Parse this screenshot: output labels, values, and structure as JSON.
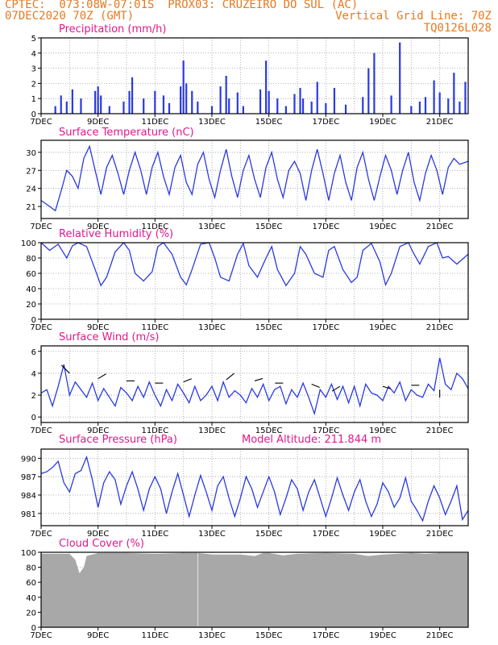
{
  "header": {
    "line1_left": "CPTEC:  073:08W-07:01S  PROX03: CRUZEIRO DO SUL (AC)",
    "line2_left": "07DEC2020 70Z (GMT)",
    "line2_right": "Vertical Grid Line: 70Z",
    "line3_right": "TQ0126L028"
  },
  "colors": {
    "header": "#e8781e",
    "title": "#e0188c",
    "series": "#2a3ae0",
    "cloud": "#a8a8a8"
  },
  "x_labels": [
    "7DEC",
    "9DEC",
    "11DEC",
    "13DEC",
    "15DEC",
    "17DEC",
    "19DEC",
    "21DEC"
  ],
  "chart_data": [
    {
      "id": "precip",
      "type": "bar",
      "title": "Precipitation (mm/h)",
      "ylim": [
        0,
        5
      ],
      "yticks": [
        0,
        1,
        2,
        3,
        4,
        5
      ],
      "x_days": [
        0,
        15
      ],
      "bars": [
        [
          0.5,
          0.5
        ],
        [
          0.7,
          1.2
        ],
        [
          0.9,
          0.8
        ],
        [
          1.1,
          1.6
        ],
        [
          1.4,
          1.0
        ],
        [
          1.9,
          1.5
        ],
        [
          2.0,
          1.8
        ],
        [
          2.1,
          1.2
        ],
        [
          2.4,
          0.5
        ],
        [
          2.9,
          0.8
        ],
        [
          3.1,
          1.5
        ],
        [
          3.2,
          2.4
        ],
        [
          3.6,
          1.0
        ],
        [
          4.0,
          1.5
        ],
        [
          4.3,
          1.2
        ],
        [
          4.5,
          0.7
        ],
        [
          4.9,
          1.8
        ],
        [
          5.0,
          3.5
        ],
        [
          5.1,
          2.0
        ],
        [
          5.3,
          1.5
        ],
        [
          5.5,
          0.8
        ],
        [
          6.0,
          0.5
        ],
        [
          6.3,
          1.8
        ],
        [
          6.5,
          2.5
        ],
        [
          6.6,
          1.0
        ],
        [
          6.9,
          1.4
        ],
        [
          7.1,
          0.5
        ],
        [
          7.7,
          1.6
        ],
        [
          7.9,
          3.5
        ],
        [
          8.0,
          1.5
        ],
        [
          8.3,
          1.0
        ],
        [
          8.6,
          0.5
        ],
        [
          8.9,
          1.3
        ],
        [
          9.1,
          1.7
        ],
        [
          9.2,
          1.0
        ],
        [
          9.5,
          0.8
        ],
        [
          9.7,
          2.1
        ],
        [
          10.0,
          0.7
        ],
        [
          10.3,
          1.7
        ],
        [
          10.7,
          0.6
        ],
        [
          11.3,
          1.1
        ],
        [
          11.5,
          3.0
        ],
        [
          11.7,
          4.0
        ],
        [
          12.3,
          1.2
        ],
        [
          12.6,
          4.7
        ],
        [
          13.0,
          0.5
        ],
        [
          13.3,
          0.8
        ],
        [
          13.5,
          1.1
        ],
        [
          13.8,
          2.2
        ],
        [
          14.0,
          1.4
        ],
        [
          14.3,
          1.0
        ],
        [
          14.5,
          2.7
        ],
        [
          14.7,
          0.8
        ],
        [
          14.9,
          2.1
        ]
      ]
    },
    {
      "id": "temp",
      "type": "line",
      "title": "Surface Temperature (nC)",
      "ylim": [
        19,
        32
      ],
      "yticks": [
        21,
        24,
        27,
        30
      ],
      "x_days": [
        0,
        15
      ],
      "x": [
        0,
        0.3,
        0.5,
        0.7,
        0.9,
        1.1,
        1.3,
        1.5,
        1.7,
        1.9,
        2.1,
        2.3,
        2.5,
        2.7,
        2.9,
        3.1,
        3.3,
        3.5,
        3.7,
        3.9,
        4.1,
        4.3,
        4.5,
        4.7,
        4.9,
        5.1,
        5.3,
        5.5,
        5.7,
        5.9,
        6.1,
        6.3,
        6.5,
        6.7,
        6.9,
        7.1,
        7.3,
        7.5,
        7.7,
        7.9,
        8.1,
        8.3,
        8.5,
        8.7,
        8.9,
        9.1,
        9.3,
        9.5,
        9.7,
        9.9,
        10.1,
        10.3,
        10.5,
        10.7,
        10.9,
        11.1,
        11.3,
        11.5,
        11.7,
        11.9,
        12.1,
        12.3,
        12.5,
        12.7,
        12.9,
        13.1,
        13.3,
        13.5,
        13.7,
        13.9,
        14.1,
        14.3,
        14.5,
        14.7,
        15.0
      ],
      "y": [
        22.0,
        21.0,
        20.3,
        23.5,
        27.0,
        26.0,
        24.0,
        29.0,
        31.0,
        27.0,
        23.0,
        27.5,
        29.5,
        26.5,
        23.0,
        27.0,
        30.0,
        27.0,
        23.0,
        27.5,
        30.0,
        26.0,
        23.0,
        27.5,
        29.5,
        25.0,
        23.0,
        28.0,
        30.0,
        25.5,
        22.5,
        27.0,
        30.5,
        26.0,
        22.5,
        27.0,
        29.5,
        25.5,
        22.5,
        27.5,
        30.0,
        25.5,
        22.5,
        27.0,
        28.5,
        26.5,
        22.0,
        27.0,
        30.5,
        26.5,
        22.0,
        26.5,
        29.5,
        25.0,
        22.0,
        27.5,
        30.0,
        25.5,
        22.0,
        26.0,
        29.5,
        27.0,
        23.0,
        27.0,
        30.0,
        25.0,
        22.0,
        26.5,
        29.5,
        27.0,
        23.0,
        27.5,
        29.0,
        28.0,
        28.5
      ]
    },
    {
      "id": "rh",
      "type": "line",
      "title": "Relative Humidity (%)",
      "ylim": [
        0,
        100
      ],
      "yticks": [
        0,
        20,
        40,
        60,
        80,
        100
      ],
      "x_days": [
        0,
        15
      ],
      "x": [
        0,
        0.3,
        0.6,
        0.9,
        1.1,
        1.3,
        1.6,
        1.9,
        2.1,
        2.3,
        2.6,
        2.9,
        3.1,
        3.3,
        3.6,
        3.9,
        4.1,
        4.3,
        4.6,
        4.9,
        5.1,
        5.3,
        5.6,
        5.9,
        6.1,
        6.3,
        6.6,
        6.9,
        7.1,
        7.3,
        7.6,
        7.9,
        8.1,
        8.3,
        8.6,
        8.9,
        9.1,
        9.3,
        9.6,
        9.9,
        10.1,
        10.3,
        10.6,
        10.9,
        11.1,
        11.3,
        11.6,
        11.9,
        12.1,
        12.3,
        12.6,
        12.9,
        13.1,
        13.3,
        13.6,
        13.9,
        14.1,
        14.3,
        14.6,
        15.0
      ],
      "y": [
        100,
        90,
        98,
        80,
        96,
        100,
        95,
        65,
        44,
        55,
        88,
        100,
        90,
        60,
        50,
        62,
        95,
        100,
        85,
        55,
        45,
        65,
        98,
        100,
        80,
        55,
        50,
        85,
        99,
        70,
        55,
        80,
        95,
        65,
        44,
        60,
        95,
        85,
        60,
        55,
        90,
        95,
        65,
        48,
        55,
        90,
        99,
        75,
        45,
        60,
        95,
        100,
        85,
        72,
        95,
        100,
        80,
        82,
        72,
        85
      ]
    },
    {
      "id": "wind",
      "type": "line",
      "title": "Surface Wind (m/s)",
      "ylim": [
        -0.5,
        6.5
      ],
      "yticks": [
        0,
        2,
        4,
        6
      ],
      "x_days": [
        0,
        15
      ],
      "x": [
        0,
        0.2,
        0.4,
        0.6,
        0.8,
        1.0,
        1.2,
        1.4,
        1.6,
        1.8,
        2.0,
        2.2,
        2.4,
        2.6,
        2.8,
        3.0,
        3.2,
        3.4,
        3.6,
        3.8,
        4.0,
        4.2,
        4.4,
        4.6,
        4.8,
        5.0,
        5.2,
        5.4,
        5.6,
        5.8,
        6.0,
        6.2,
        6.4,
        6.6,
        6.8,
        7.0,
        7.2,
        7.4,
        7.6,
        7.8,
        8.0,
        8.2,
        8.4,
        8.6,
        8.8,
        9.0,
        9.2,
        9.4,
        9.6,
        9.8,
        10.0,
        10.2,
        10.4,
        10.6,
        10.8,
        11.0,
        11.2,
        11.4,
        11.6,
        11.8,
        12.0,
        12.2,
        12.4,
        12.6,
        12.8,
        13.0,
        13.2,
        13.4,
        13.6,
        13.8,
        14.0,
        14.2,
        14.4,
        14.6,
        14.8,
        15.0
      ],
      "y": [
        2.2,
        2.5,
        1.0,
        2.8,
        4.8,
        2.0,
        3.2,
        2.5,
        1.8,
        3.1,
        1.5,
        2.6,
        1.8,
        1.0,
        2.7,
        2.2,
        1.5,
        2.8,
        1.8,
        3.2,
        2.0,
        1.0,
        2.5,
        1.5,
        3.0,
        2.2,
        1.3,
        2.8,
        1.5,
        2.0,
        2.8,
        1.5,
        3.2,
        1.8,
        2.4,
        2.0,
        1.3,
        2.6,
        1.8,
        3.0,
        1.5,
        2.5,
        2.8,
        1.2,
        2.5,
        1.8,
        3.1,
        1.8,
        0.3,
        2.5,
        1.8,
        3.0,
        1.6,
        2.8,
        1.3,
        2.8,
        1.0,
        3.0,
        2.2,
        2.0,
        1.5,
        2.8,
        2.2,
        3.2,
        1.5,
        2.5,
        2.0,
        1.8,
        3.0,
        2.4,
        5.4,
        3.0,
        2.5,
        4.0,
        3.5,
        2.6
      ]
    },
    {
      "id": "pres",
      "type": "line",
      "title": "Surface Pressure (hPa)",
      "note": "Model Altitude: 211.844 m",
      "ylim": [
        979,
        991.5
      ],
      "yticks": [
        981,
        984,
        987,
        990
      ],
      "x_days": [
        0,
        15
      ],
      "x": [
        0,
        0.2,
        0.4,
        0.6,
        0.8,
        1.0,
        1.2,
        1.4,
        1.6,
        1.8,
        2.0,
        2.2,
        2.4,
        2.6,
        2.8,
        3.0,
        3.2,
        3.4,
        3.6,
        3.8,
        4.0,
        4.2,
        4.4,
        4.6,
        4.8,
        5.0,
        5.2,
        5.4,
        5.6,
        5.8,
        6.0,
        6.2,
        6.4,
        6.6,
        6.8,
        7.0,
        7.2,
        7.4,
        7.6,
        7.8,
        8.0,
        8.2,
        8.4,
        8.6,
        8.8,
        9.0,
        9.2,
        9.4,
        9.6,
        9.8,
        10.0,
        10.2,
        10.4,
        10.6,
        10.8,
        11.0,
        11.2,
        11.4,
        11.6,
        11.8,
        12.0,
        12.2,
        12.4,
        12.6,
        12.8,
        13.0,
        13.2,
        13.4,
        13.6,
        13.8,
        14.0,
        14.2,
        14.4,
        14.6,
        14.8,
        15.0
      ],
      "y": [
        987.5,
        987.8,
        988.5,
        989.5,
        986.0,
        984.5,
        987.5,
        988.0,
        990.2,
        986.5,
        982.0,
        986.0,
        987.8,
        986.5,
        982.5,
        985.5,
        987.8,
        985.0,
        981.5,
        985.0,
        987.0,
        985.0,
        981.0,
        984.5,
        987.5,
        984.0,
        980.5,
        984.0,
        987.2,
        984.5,
        981.5,
        985.5,
        987.0,
        983.5,
        980.5,
        983.5,
        987.0,
        985.0,
        982.0,
        984.5,
        987.0,
        984.5,
        980.8,
        983.5,
        986.5,
        985.0,
        981.5,
        984.5,
        986.5,
        983.5,
        980.5,
        983.5,
        986.8,
        984.0,
        981.5,
        984.5,
        986.5,
        983.0,
        980.5,
        982.5,
        986.0,
        984.5,
        982.0,
        983.5,
        986.8,
        983.0,
        981.5,
        979.8,
        983.0,
        985.5,
        983.5,
        980.8,
        983.0,
        985.5,
        980.0,
        981.5
      ]
    },
    {
      "id": "cloud",
      "type": "area",
      "title": "Cloud Cover (%)",
      "ylim": [
        0,
        100
      ],
      "yticks": [
        0,
        20,
        40,
        60,
        80,
        100
      ],
      "x_days": [
        0,
        15
      ],
      "x": [
        0,
        1.0,
        1.2,
        1.35,
        1.5,
        1.6,
        2.0,
        3.0,
        4.0,
        5.0,
        5.5,
        5.5,
        5.52,
        5.52,
        6.0,
        7.0,
        7.5,
        7.8,
        8.0,
        8.5,
        9.0,
        10.0,
        11.0,
        11.5,
        12.0,
        13.0,
        13.5,
        14.0,
        14.5,
        15.0
      ],
      "y": [
        98,
        98,
        90,
        72,
        80,
        95,
        99,
        99,
        98,
        99,
        99,
        2,
        2,
        99,
        97,
        97,
        95,
        99,
        99,
        96,
        98,
        99,
        98,
        95,
        97,
        99,
        98,
        99,
        99,
        99
      ]
    }
  ]
}
